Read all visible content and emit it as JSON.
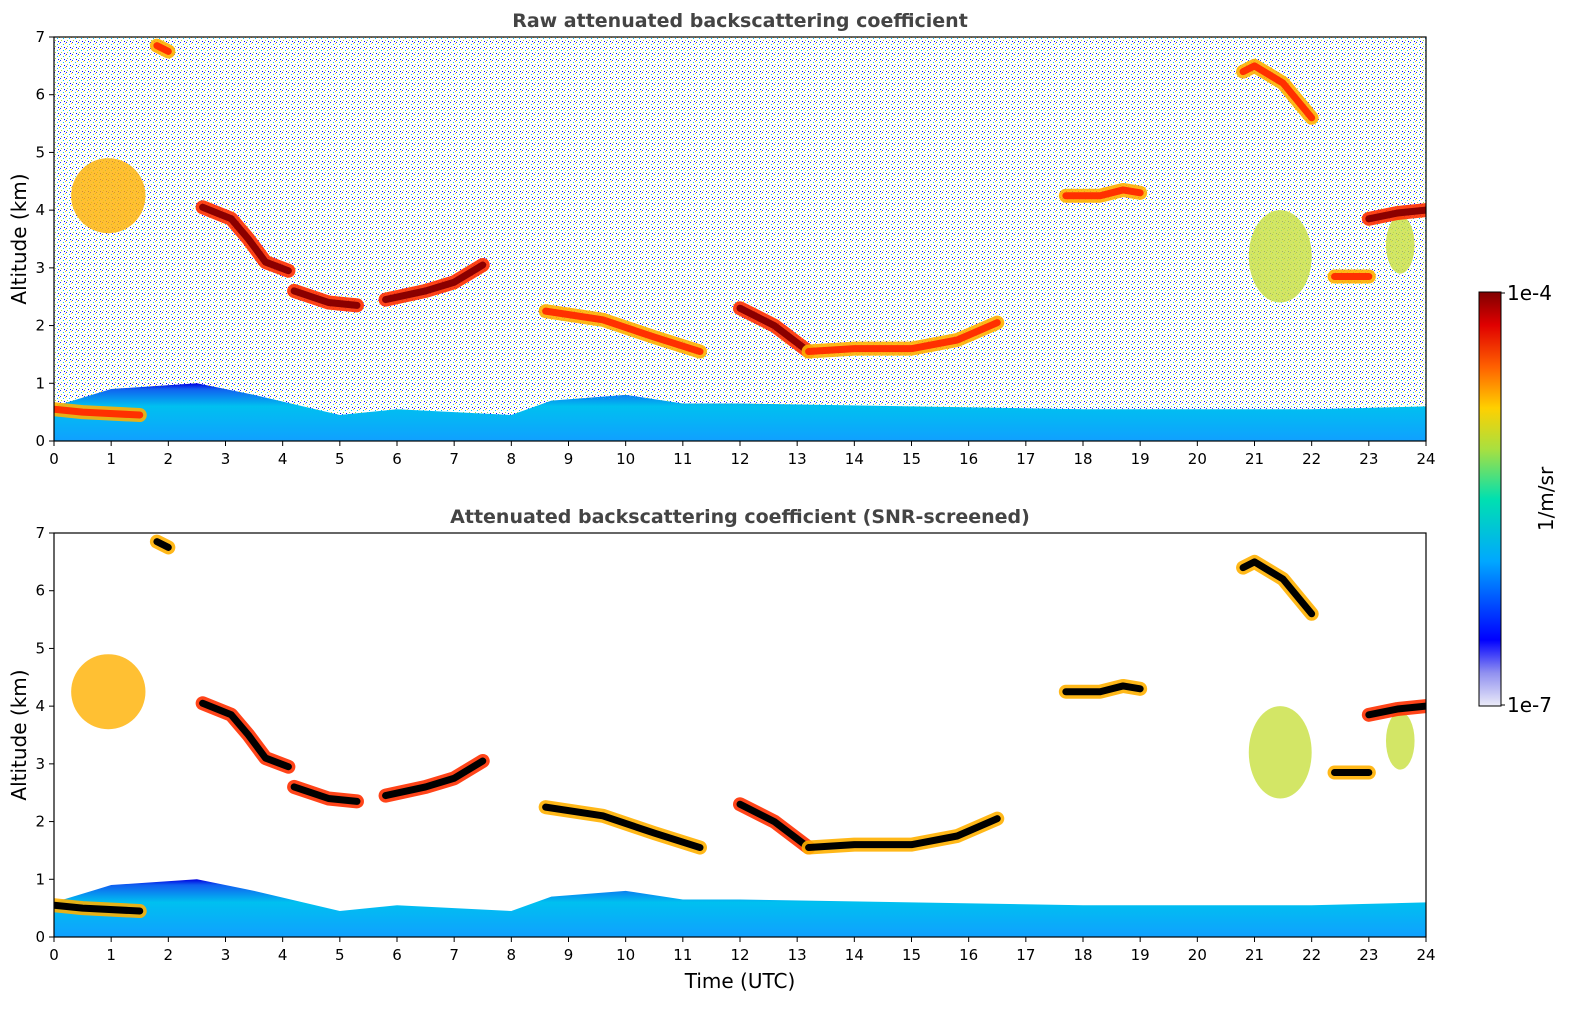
{
  "chart_data": [
    {
      "type": "heatmap",
      "title": "Raw attenuated backscattering coefficient",
      "xlabel": "",
      "ylabel": "Altitude (km)",
      "xlim": [
        0,
        24
      ],
      "ylim": [
        0,
        7
      ],
      "xticks": [
        "0",
        "1",
        "2",
        "3",
        "4",
        "5",
        "6",
        "7",
        "8",
        "9",
        "10",
        "11",
        "12",
        "13",
        "14",
        "15",
        "16",
        "17",
        "18",
        "19",
        "20",
        "21",
        "22",
        "23",
        "24"
      ],
      "yticks": [
        "0",
        "1",
        "2",
        "3",
        "4",
        "5",
        "6",
        "7"
      ],
      "background_noise": true,
      "boundary_layer_top_km": [
        [
          0,
          0.6
        ],
        [
          1,
          0.9
        ],
        [
          2.5,
          1.0
        ],
        [
          3.5,
          0.8
        ],
        [
          5,
          0.45
        ],
        [
          6,
          0.55
        ],
        [
          8,
          0.45
        ],
        [
          8.7,
          0.7
        ],
        [
          10,
          0.8
        ],
        [
          11,
          0.65
        ],
        [
          12,
          0.65
        ],
        [
          15,
          0.6
        ],
        [
          18,
          0.55
        ],
        [
          20,
          0.55
        ],
        [
          22,
          0.55
        ],
        [
          24,
          0.6
        ]
      ],
      "cloud_layers": [
        {
          "name": "low-cloud-morning",
          "points": [
            [
              0,
              0.55
            ],
            [
              0.5,
              0.5
            ],
            [
              1.5,
              0.45
            ]
          ],
          "intensity": 0.8
        },
        {
          "name": "mid-cloud-descending",
          "points": [
            [
              2.6,
              4.05
            ],
            [
              3.1,
              3.85
            ],
            [
              3.4,
              3.5
            ],
            [
              3.7,
              3.1
            ],
            [
              4.1,
              2.95
            ]
          ],
          "intensity": 0.95
        },
        {
          "name": "mid-cloud-band",
          "points": [
            [
              4.2,
              2.6
            ],
            [
              4.8,
              2.4
            ],
            [
              5.3,
              2.35
            ]
          ],
          "intensity": 0.95
        },
        {
          "name": "mid-cloud-rising",
          "points": [
            [
              5.8,
              2.45
            ],
            [
              6.5,
              2.6
            ],
            [
              7,
              2.75
            ],
            [
              7.5,
              3.05
            ]
          ],
          "intensity": 0.95
        },
        {
          "name": "mid-cloud-descending-2",
          "points": [
            [
              8.6,
              2.25
            ],
            [
              9.6,
              2.1
            ],
            [
              10.5,
              1.8
            ],
            [
              11.3,
              1.55
            ]
          ],
          "intensity": 0.9
        },
        {
          "name": "mid-cloud-noon",
          "points": [
            [
              12,
              2.3
            ],
            [
              12.6,
              2.0
            ],
            [
              13.2,
              1.55
            ]
          ],
          "intensity": 0.95
        },
        {
          "name": "mid-cloud-afternoon",
          "points": [
            [
              13.2,
              1.55
            ],
            [
              14,
              1.6
            ],
            [
              15,
              1.6
            ],
            [
              15.8,
              1.75
            ],
            [
              16.5,
              2.05
            ]
          ],
          "intensity": 0.9
        },
        {
          "name": "upper-cloud-evening",
          "points": [
            [
              17.7,
              4.25
            ],
            [
              18.3,
              4.25
            ],
            [
              18.7,
              4.35
            ],
            [
              19,
              4.3
            ]
          ],
          "intensity": 0.9
        },
        {
          "name": "upper-cloud-late",
          "points": [
            [
              23,
              3.85
            ],
            [
              23.5,
              3.95
            ],
            [
              24,
              4.0
            ]
          ],
          "intensity": 0.95
        },
        {
          "name": "mid-cloud-late",
          "points": [
            [
              22.4,
              2.85
            ],
            [
              23,
              2.85
            ]
          ],
          "intensity": 0.9
        },
        {
          "name": "high-cloud-early",
          "points": [
            [
              1.8,
              6.85
            ],
            [
              2.0,
              6.75
            ]
          ],
          "intensity": 0.9
        },
        {
          "name": "high-cloud-evening",
          "points": [
            [
              20.8,
              6.4
            ],
            [
              21,
              6.5
            ],
            [
              21.5,
              6.2
            ],
            [
              22,
              5.6
            ]
          ],
          "intensity": 0.85
        }
      ],
      "aerosol_plumes": [
        {
          "name": "plume-morning",
          "x": [
            0.3,
            1.6
          ],
          "y": [
            3.6,
            4.9
          ],
          "intensity": 0.65
        },
        {
          "name": "plume-evening",
          "x": [
            20.9,
            22.0
          ],
          "y": [
            2.4,
            4.0
          ],
          "intensity": 0.6
        },
        {
          "name": "plume-late",
          "x": [
            23.3,
            23.8
          ],
          "y": [
            2.9,
            3.9
          ],
          "intensity": 0.6
        }
      ]
    },
    {
      "type": "heatmap",
      "title": "Attenuated backscattering coefficient (SNR-screened)",
      "xlabel": "Time (UTC)",
      "ylabel": "Altitude (km)",
      "xlim": [
        0,
        24
      ],
      "ylim": [
        0,
        7
      ],
      "xticks": [
        "0",
        "1",
        "2",
        "3",
        "4",
        "5",
        "6",
        "7",
        "8",
        "9",
        "10",
        "11",
        "12",
        "13",
        "14",
        "15",
        "16",
        "17",
        "18",
        "19",
        "20",
        "21",
        "22",
        "23",
        "24"
      ],
      "yticks": [
        "0",
        "1",
        "2",
        "3",
        "4",
        "5",
        "6",
        "7"
      ],
      "background_noise": false,
      "screened": true
    }
  ],
  "colorbar": {
    "label": "1/m/sr",
    "max_label": "1e-4",
    "min_label": "1e-7",
    "colormap": [
      "#e8e8f8",
      "#0000ff",
      "#00aaff",
      "#00e0a0",
      "#c8e040",
      "#ffb000",
      "#ff3000",
      "#8b0000"
    ]
  }
}
